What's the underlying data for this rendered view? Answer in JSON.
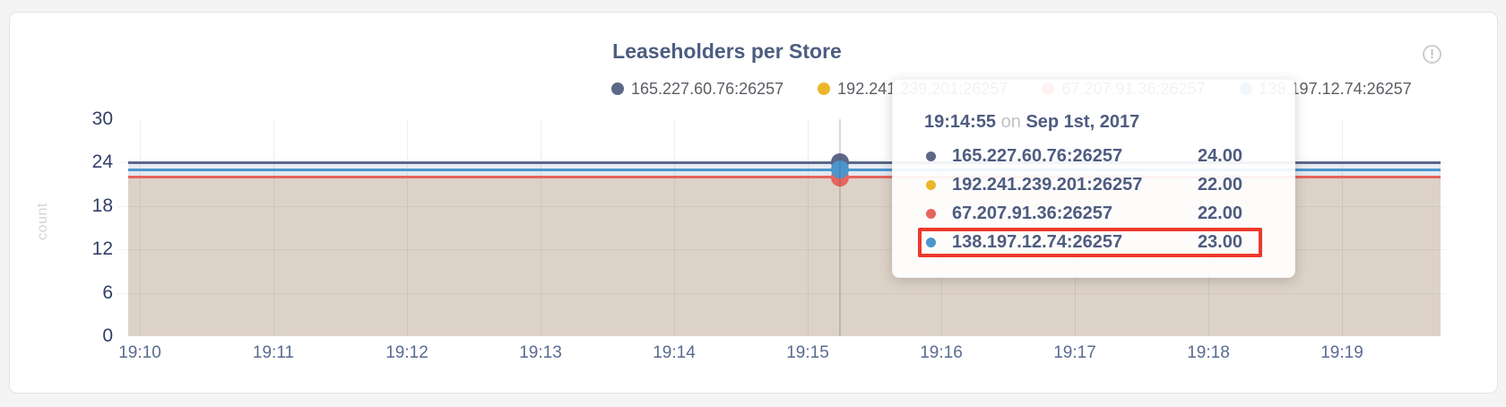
{
  "page": {
    "background": "#f4f4f5",
    "card_background": "#ffffff",
    "card_border": "#e2e2e2"
  },
  "header": {
    "info_glyph": "!"
  },
  "chart_data": {
    "type": "line",
    "title": "Leaseholders per Store",
    "ylabel": "count",
    "ylim": [
      0,
      30
    ],
    "yticks": [
      30,
      24,
      18,
      12,
      6,
      0
    ],
    "grid_yticks": [
      24,
      18,
      12,
      6
    ],
    "x_ticks": [
      "19:10",
      "19:11",
      "19:12",
      "19:13",
      "19:14",
      "19:15",
      "19:16",
      "19:17",
      "19:18",
      "19:19"
    ],
    "grid": true,
    "legend_position": "top-right",
    "series": [
      {
        "name": "165.227.60.76:26257",
        "color": "#5b6887",
        "value": 24
      },
      {
        "name": "192.241.239.201:26257",
        "color": "#edb62a",
        "value": 22
      },
      {
        "name": "67.207.91.36:26257",
        "color": "#e5655e",
        "value": 22
      },
      {
        "name": "138.197.12.74:26257",
        "color": "#4b96ce",
        "value": 23
      }
    ],
    "bands": [
      {
        "from": 24,
        "to": 23,
        "color": "#e8ecf3"
      },
      {
        "from": 23,
        "to": 22,
        "color": "#e3e9f1"
      },
      {
        "from": 22,
        "to": 0,
        "color": "#ddd2c8"
      }
    ],
    "hover": {
      "time_label": "19:14:55"
    }
  },
  "tooltip": {
    "time": "19:14:55",
    "separator": "on",
    "date": "Sep 1st, 2017",
    "highlight_color": "#ee392b",
    "rows": [
      {
        "name": "165.227.60.76:26257",
        "value": "24.00",
        "color": "#5b6887",
        "highlighted": false
      },
      {
        "name": "192.241.239.201:26257",
        "value": "22.00",
        "color": "#edb62a",
        "highlighted": false
      },
      {
        "name": "67.207.91.36:26257",
        "value": "22.00",
        "color": "#e5655e",
        "highlighted": false
      },
      {
        "name": "138.197.12.74:26257",
        "value": "23.00",
        "color": "#4b96ce",
        "highlighted": true
      }
    ]
  }
}
